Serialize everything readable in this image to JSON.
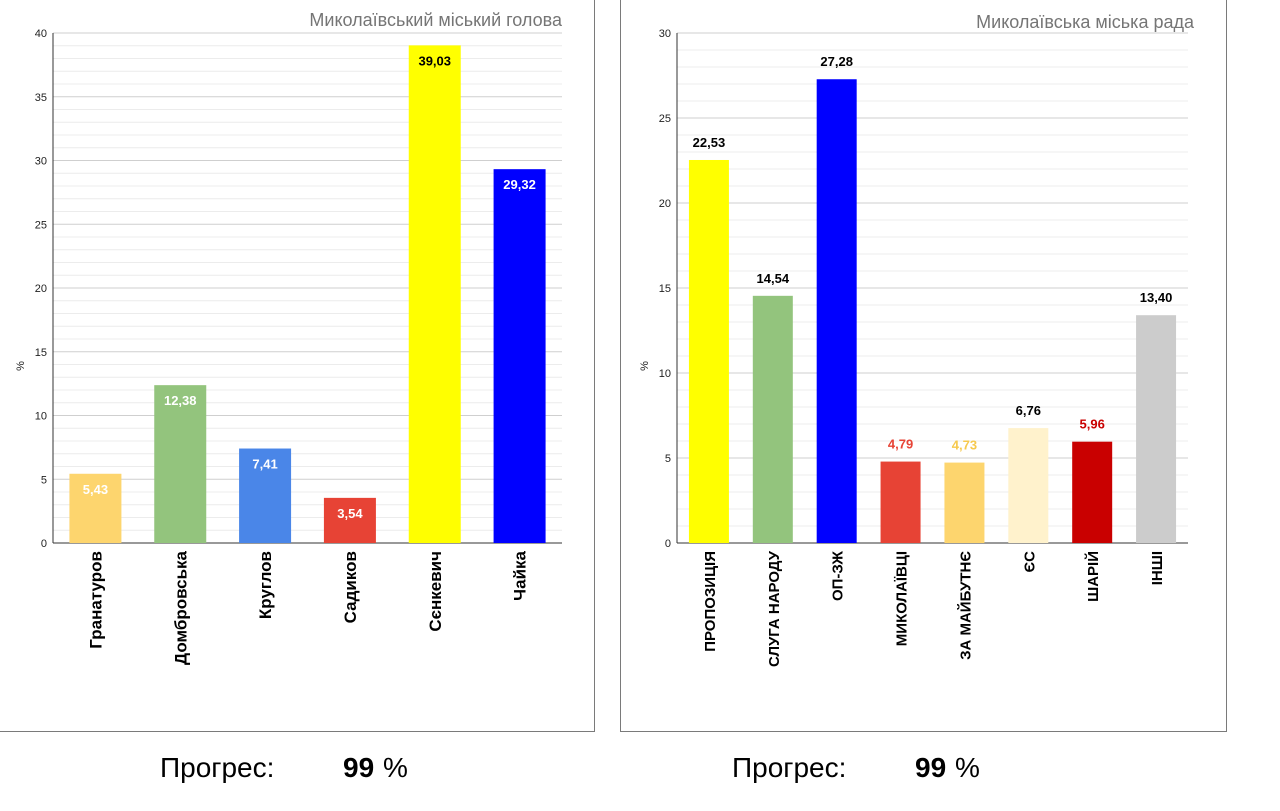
{
  "chart_data": [
    {
      "type": "bar",
      "title": "Миколаївський міський голова",
      "ylabel": "%",
      "ylim": [
        0,
        40
      ],
      "yticks": [
        0,
        5,
        10,
        15,
        20,
        25,
        30,
        35,
        40
      ],
      "grid": true,
      "categories": [
        "Гранатуров",
        "Домбровська",
        "Круглов",
        "Садиков",
        "Сєнкевич",
        "Чайка"
      ],
      "values": [
        5.43,
        12.38,
        7.41,
        3.54,
        39.03,
        29.32
      ],
      "value_labels": [
        "5,43",
        "12,38",
        "7,41",
        "3,54",
        "39,03",
        "29,32"
      ],
      "colors": [
        "#fdd56e",
        "#93c47d",
        "#4a86e8",
        "#e74335",
        "#ffff00",
        "#0000ff"
      ],
      "label_colors": [
        "#ffffff",
        "#ffffff",
        "#ffffff",
        "#ffffff",
        "#000000",
        "#ffffff"
      ],
      "label_position": "inside"
    },
    {
      "type": "bar",
      "title": "Миколаївська міська рада",
      "ylabel": "%",
      "ylim": [
        0,
        30
      ],
      "yticks": [
        0,
        5,
        10,
        15,
        20,
        25,
        30
      ],
      "grid": true,
      "categories": [
        "ПРОПОЗИЦІЯ",
        "СЛУГА НАРОДУ",
        "ОП-ЗЖ",
        "МИКОЛАЇВЦІ",
        "ЗА МАЙБУТНЄ",
        "ЄС",
        "ШАРІЙ",
        "ІНШІ"
      ],
      "values": [
        22.53,
        14.54,
        27.28,
        4.79,
        4.73,
        6.76,
        5.96,
        13.4
      ],
      "value_labels": [
        "22,53",
        "14,54",
        "27,28",
        "4,79",
        "4,73",
        "6,76",
        "5,96",
        "13,40"
      ],
      "colors": [
        "#ffff00",
        "#93c47d",
        "#0000ff",
        "#e74335",
        "#fdd56e",
        "#fff2cc",
        "#c90000",
        "#cccccc"
      ],
      "label_colors": [
        "#000000",
        "#000000",
        "#000000",
        "#e74335",
        "#f6c94e",
        "#000000",
        "#c90000",
        "#000000"
      ],
      "label_position": "above"
    }
  ],
  "progress": [
    {
      "label": "Прогрес:",
      "value": "99",
      "unit": "%"
    },
    {
      "label": "Прогрес:",
      "value": "99",
      "unit": "%"
    }
  ]
}
